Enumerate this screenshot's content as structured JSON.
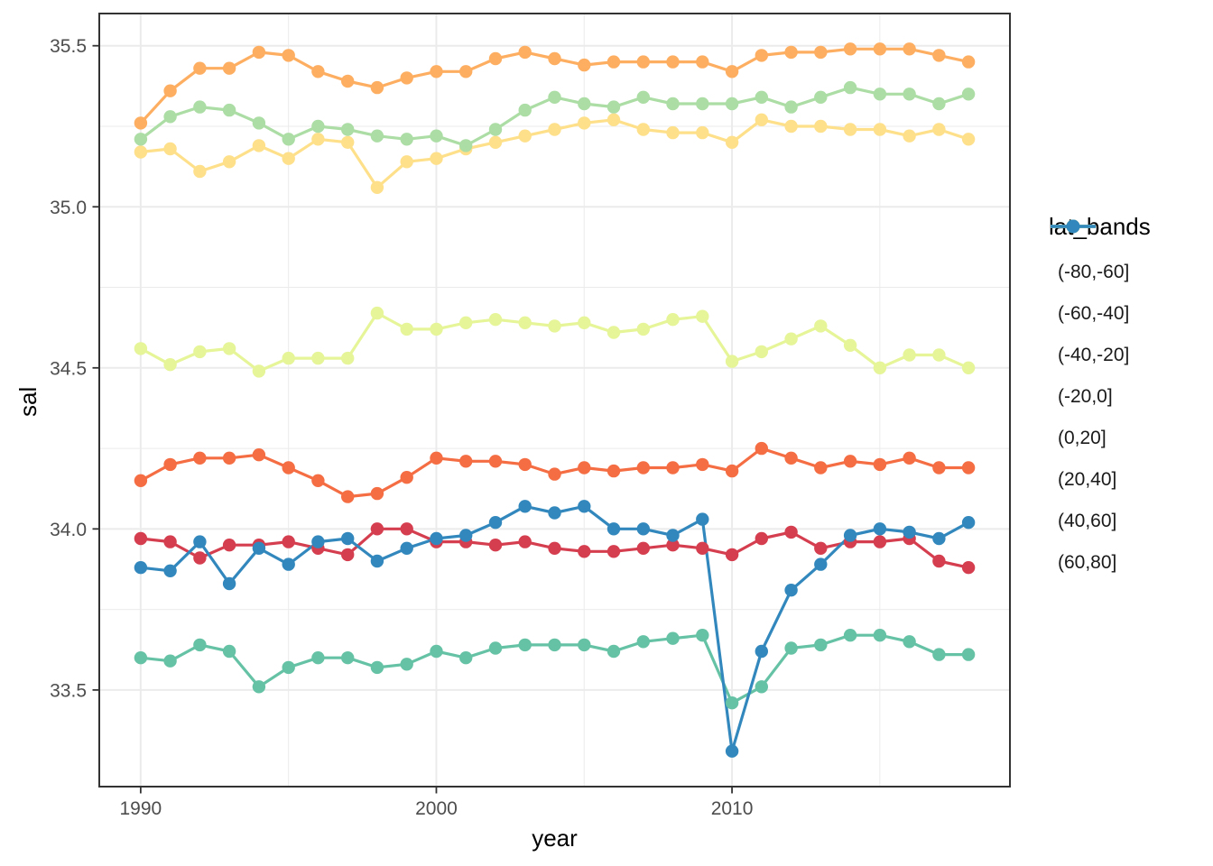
{
  "figure": {
    "background": "#ffffff"
  },
  "legend": {
    "title": "lat_bands",
    "position": "right"
  },
  "chart_data": {
    "type": "line",
    "title": "",
    "xlabel": "year",
    "ylabel": "sal",
    "legend_title": "lat_bands",
    "legend_position": "right",
    "grid": true,
    "xlim": [
      1988.6,
      2019.4
    ],
    "ylim": [
      33.2,
      35.6
    ],
    "x_major_ticks": [
      1990,
      2000,
      2010
    ],
    "x_tick_labels": [
      "1990",
      "2000",
      "2010"
    ],
    "x_minor_gridlines": [
      1995,
      2005,
      2015
    ],
    "y_major_ticks": [
      33.5,
      34.0,
      34.5,
      35.0,
      35.5
    ],
    "y_tick_labels": [
      "33.5",
      "34.0",
      "34.5",
      "35.0",
      "35.5"
    ],
    "y_minor_gridlines": [
      33.75,
      34.25,
      34.75,
      35.25
    ],
    "x": [
      1990,
      1991,
      1992,
      1993,
      1994,
      1995,
      1996,
      1997,
      1998,
      1999,
      2000,
      2001,
      2002,
      2003,
      2004,
      2005,
      2006,
      2007,
      2008,
      2009,
      2010,
      2011,
      2012,
      2013,
      2014,
      2015,
      2016,
      2017,
      2018
    ],
    "series": [
      {
        "name": "(-80,-60]",
        "color": "#D53E4F",
        "values": [
          33.97,
          33.96,
          33.91,
          33.95,
          33.95,
          33.96,
          33.94,
          33.92,
          34.0,
          34.0,
          33.96,
          33.96,
          33.95,
          33.96,
          33.94,
          33.93,
          33.93,
          33.94,
          33.95,
          33.94,
          33.92,
          33.97,
          33.99,
          33.94,
          33.96,
          33.96,
          33.97,
          33.9,
          33.88
        ]
      },
      {
        "name": "(-60,-40]",
        "color": "#F46D43",
        "values": [
          34.15,
          34.2,
          34.22,
          34.22,
          34.23,
          34.19,
          34.15,
          34.1,
          34.11,
          34.16,
          34.22,
          34.21,
          34.21,
          34.2,
          34.17,
          34.19,
          34.18,
          34.19,
          34.19,
          34.2,
          34.18,
          34.25,
          34.22,
          34.19,
          34.21,
          34.2,
          34.22,
          34.19,
          34.19
        ]
      },
      {
        "name": "(-40,-20]",
        "color": "#FDAE61",
        "values": [
          35.26,
          35.36,
          35.43,
          35.43,
          35.48,
          35.47,
          35.42,
          35.39,
          35.37,
          35.4,
          35.42,
          35.42,
          35.46,
          35.48,
          35.46,
          35.44,
          35.45,
          35.45,
          35.45,
          35.45,
          35.42,
          35.47,
          35.48,
          35.48,
          35.49,
          35.49,
          35.49,
          35.47,
          35.45
        ]
      },
      {
        "name": "(-20,0]",
        "color": "#FEE08B",
        "values": [
          35.17,
          35.18,
          35.11,
          35.14,
          35.19,
          35.15,
          35.21,
          35.2,
          35.06,
          35.14,
          35.15,
          35.18,
          35.2,
          35.22,
          35.24,
          35.26,
          35.27,
          35.24,
          35.23,
          35.23,
          35.2,
          35.27,
          35.25,
          35.25,
          35.24,
          35.24,
          35.22,
          35.24,
          35.21
        ]
      },
      {
        "name": "(0,20]",
        "color": "#E6F598",
        "values": [
          34.56,
          34.51,
          34.55,
          34.56,
          34.49,
          34.53,
          34.53,
          34.53,
          34.67,
          34.62,
          34.62,
          34.64,
          34.65,
          34.64,
          34.63,
          34.64,
          34.61,
          34.62,
          34.65,
          34.66,
          34.52,
          34.55,
          34.59,
          34.63,
          34.57,
          34.5,
          34.54,
          34.54,
          34.5
        ]
      },
      {
        "name": "(20,40]",
        "color": "#ABDDA4",
        "values": [
          35.21,
          35.28,
          35.31,
          35.3,
          35.26,
          35.21,
          35.25,
          35.24,
          35.22,
          35.21,
          35.22,
          35.19,
          35.24,
          35.3,
          35.34,
          35.32,
          35.31,
          35.34,
          35.32,
          35.32,
          35.32,
          35.34,
          35.31,
          35.34,
          35.37,
          35.35,
          35.35,
          35.32,
          35.35
        ]
      },
      {
        "name": "(40,60]",
        "color": "#66C2A5",
        "values": [
          33.6,
          33.59,
          33.64,
          33.62,
          33.51,
          33.57,
          33.6,
          33.6,
          33.57,
          33.58,
          33.62,
          33.6,
          33.63,
          33.64,
          33.64,
          33.64,
          33.62,
          33.65,
          33.66,
          33.67,
          33.46,
          33.51,
          33.63,
          33.64,
          33.67,
          33.67,
          33.65,
          33.61,
          33.61
        ]
      },
      {
        "name": "(60,80]",
        "color": "#3288BD",
        "values": [
          33.88,
          33.87,
          33.96,
          33.83,
          33.94,
          33.89,
          33.96,
          33.97,
          33.9,
          33.94,
          33.97,
          33.98,
          34.02,
          34.07,
          34.05,
          34.07,
          34.0,
          34.0,
          33.98,
          34.03,
          33.31,
          33.62,
          33.81,
          33.89,
          33.98,
          34.0,
          33.99,
          33.97,
          34.02
        ]
      }
    ],
    "styles": {
      "panel_border": "#333333",
      "gridline": "#EBEBEB",
      "tick_mark": "#333333",
      "tick_label_color": "#4D4D4D",
      "axis_title_color": "#000000",
      "point_radius": 7.2,
      "line_width": 3.2
    }
  }
}
